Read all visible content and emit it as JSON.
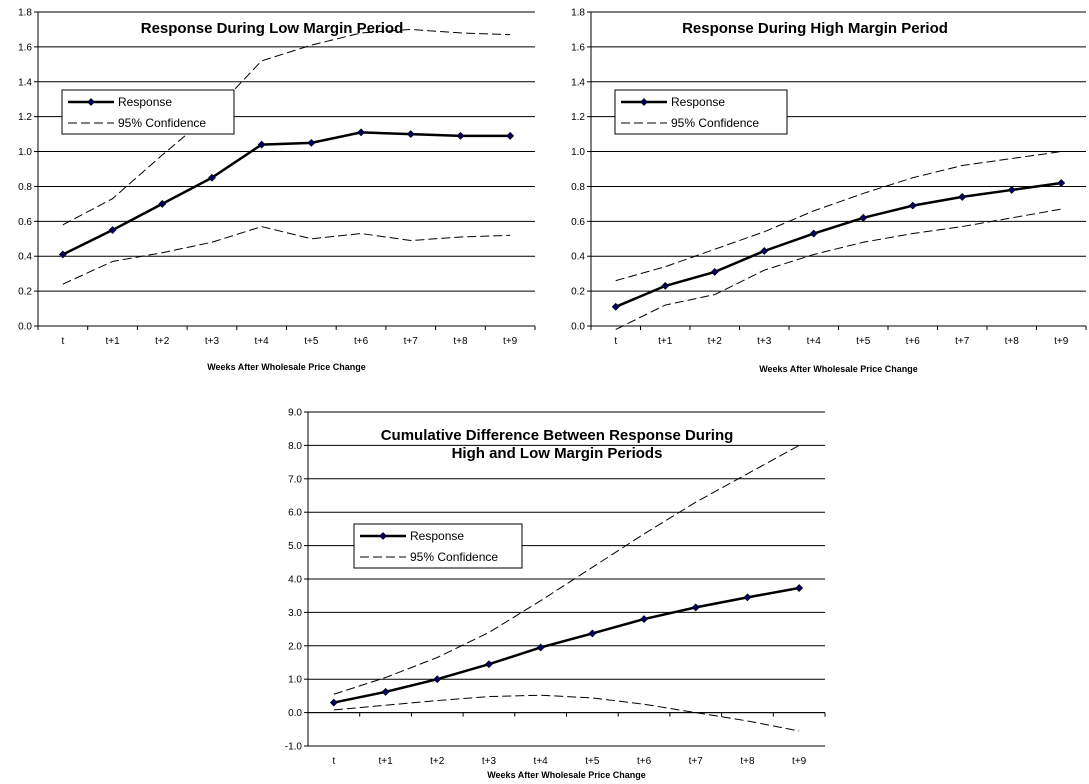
{
  "chart_data": [
    {
      "type": "line",
      "title": "Response During Low Margin Period",
      "title_lines": [
        "Response During Low Margin Period"
      ],
      "xlabel": "Weeks After Wholesale Price Change",
      "ylabel": "",
      "categories": [
        "t",
        "t+1",
        "t+2",
        "t+3",
        "t+4",
        "t+5",
        "t+6",
        "t+7",
        "t+8",
        "t+9"
      ],
      "ylim": [
        0,
        1.8
      ],
      "ystep": 0.2,
      "ydecimals": 1,
      "grid": true,
      "legend": [
        "Response",
        "95% Confidence"
      ],
      "series": [
        {
          "name": "Response",
          "values": [
            0.41,
            0.55,
            0.7,
            0.85,
            1.04,
            1.05,
            1.11,
            1.1,
            1.09,
            1.09
          ]
        },
        {
          "name": "95% Confidence",
          "values": [
            0.58,
            0.73,
            0.98,
            1.22,
            1.52,
            1.61,
            1.68,
            1.7,
            1.68,
            1.67
          ]
        },
        {
          "name": "95% Confidence",
          "values": [
            0.24,
            0.37,
            0.42,
            0.48,
            0.57,
            0.5,
            0.53,
            0.49,
            0.51,
            0.52
          ]
        }
      ]
    },
    {
      "type": "line",
      "title": "Response During High Margin Period",
      "title_lines": [
        "Response During High Margin Period"
      ],
      "xlabel": "Weeks After Wholesale Price Change",
      "ylabel": "",
      "categories": [
        "t",
        "t+1",
        "t+2",
        "t+3",
        "t+4",
        "t+5",
        "t+6",
        "t+7",
        "t+8",
        "t+9"
      ],
      "ylim": [
        0,
        1.8
      ],
      "ystep": 0.2,
      "ydecimals": 1,
      "grid": true,
      "legend": [
        "Response",
        "95% Confidence"
      ],
      "series": [
        {
          "name": "Response",
          "values": [
            0.11,
            0.23,
            0.31,
            0.43,
            0.53,
            0.62,
            0.69,
            0.74,
            0.78,
            0.82
          ]
        },
        {
          "name": "95% Confidence",
          "values": [
            0.26,
            0.34,
            0.44,
            0.54,
            0.66,
            0.76,
            0.85,
            0.92,
            0.96,
            1.0
          ]
        },
        {
          "name": "95% Confidence",
          "values": [
            -0.02,
            0.12,
            0.18,
            0.32,
            0.41,
            0.48,
            0.53,
            0.57,
            0.62,
            0.67
          ]
        }
      ]
    },
    {
      "type": "line",
      "title": "Cumulative Difference Between Response During High and Low Margin Periods",
      "title_lines": [
        "Cumulative Difference Between Response During",
        "High and Low Margin Periods"
      ],
      "xlabel": "Weeks After Wholesale Price Change",
      "ylabel": "",
      "categories": [
        "t",
        "t+1",
        "t+2",
        "t+3",
        "t+4",
        "t+5",
        "t+6",
        "t+7",
        "t+8",
        "t+9"
      ],
      "ylim": [
        -1.0,
        9.0
      ],
      "ystep": 1.0,
      "ydecimals": 1,
      "grid": true,
      "legend": [
        "Response",
        "95% Confidence"
      ],
      "series": [
        {
          "name": "Response",
          "values": [
            0.3,
            0.62,
            1.0,
            1.45,
            1.95,
            2.37,
            2.8,
            3.15,
            3.45,
            3.73
          ]
        },
        {
          "name": "95% Confidence",
          "values": [
            0.55,
            1.05,
            1.65,
            2.4,
            3.35,
            4.35,
            5.35,
            6.3,
            7.15,
            8.0
          ]
        },
        {
          "name": "95% Confidence",
          "values": [
            0.08,
            0.22,
            0.36,
            0.48,
            0.52,
            0.44,
            0.25,
            0.0,
            -0.25,
            -0.55
          ]
        }
      ]
    }
  ]
}
